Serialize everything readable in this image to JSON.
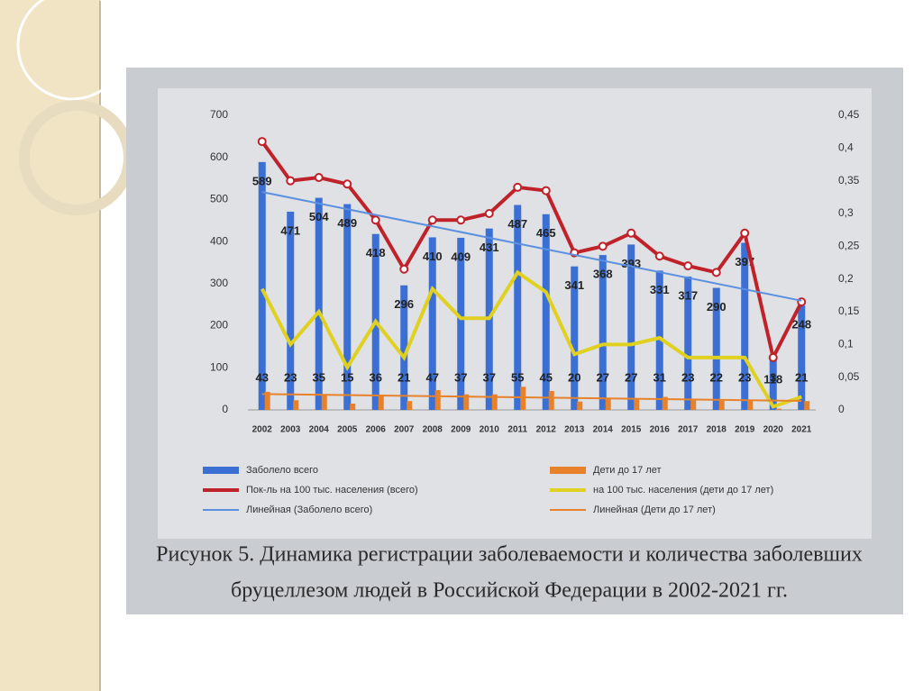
{
  "chart_data": {
    "type": "bar-line",
    "caption": [
      "Рисунок 5. Динамика регистрации заболеваемости и количества заболевших",
      "бруцеллезом людей в Российской Федерации в 2002-2021 гг."
    ],
    "categories": [
      "2002",
      "2003",
      "2004",
      "2005",
      "2006",
      "2007",
      "2008",
      "2009",
      "2010",
      "2011",
      "2012",
      "2013",
      "2014",
      "2015",
      "2016",
      "2017",
      "2018",
      "2019",
      "2020",
      "2021"
    ],
    "series": [
      {
        "name": "Заболело всего",
        "kind": "bar",
        "color": "#3b6fd4",
        "values": [
          589,
          471,
          504,
          489,
          418,
          296,
          410,
          409,
          431,
          487,
          465,
          341,
          368,
          393,
          331,
          317,
          290,
          397,
          118,
          248
        ],
        "trendline": {
          "name": "Линейная (Заболело всего)",
          "color": "#5b8fe0"
        }
      },
      {
        "name": "Дети до 17 лет",
        "kind": "bar",
        "color": "#e8822a",
        "values": [
          43,
          23,
          35,
          15,
          36,
          21,
          47,
          37,
          37,
          55,
          45,
          20,
          27,
          27,
          31,
          23,
          22,
          23,
          3,
          21
        ],
        "trendline": {
          "name": "Линейная (Дети до 17 лет)",
          "color": "#e8822a"
        }
      },
      {
        "name": "Пок-ль на 100 тыс. населения (всего)",
        "kind": "line",
        "axis": "y2",
        "color": "#c0222a",
        "values": [
          0.41,
          0.35,
          0.355,
          0.345,
          0.29,
          0.215,
          0.29,
          0.29,
          0.3,
          0.34,
          0.335,
          0.24,
          0.25,
          0.27,
          0.235,
          0.22,
          0.21,
          0.27,
          0.08,
          0.165
        ]
      },
      {
        "name": "на 100 тыс. населения (дети до 17 лет)",
        "kind": "line",
        "axis": "y2",
        "color": "#e0d020",
        "values": [
          0.185,
          0.1,
          0.15,
          0.065,
          0.135,
          0.08,
          0.185,
          0.14,
          0.14,
          0.21,
          0.18,
          0.085,
          0.1,
          0.1,
          0.11,
          0.08,
          0.08,
          0.08,
          0.005,
          0.02
        ]
      }
    ],
    "ylim": [
      0,
      700
    ],
    "yticks": [
      0,
      100,
      200,
      300,
      400,
      500,
      600,
      700
    ],
    "y2lim": [
      0,
      0.45
    ],
    "y2ticks": [
      0,
      {
        "value": 0.05,
        "label": "0,05"
      },
      {
        "value": 0.1,
        "label": "0,1"
      },
      {
        "value": 0.15,
        "label": "0,15"
      },
      {
        "value": 0.2,
        "label": "0,2"
      },
      {
        "value": 0.25,
        "label": "0,25"
      },
      {
        "value": 0.3,
        "label": "0,3"
      },
      {
        "value": 0.35,
        "label": "0,35"
      },
      {
        "value": 0.4,
        "label": "0,4"
      },
      {
        "value": 0.45,
        "label": "0,45"
      }
    ]
  }
}
